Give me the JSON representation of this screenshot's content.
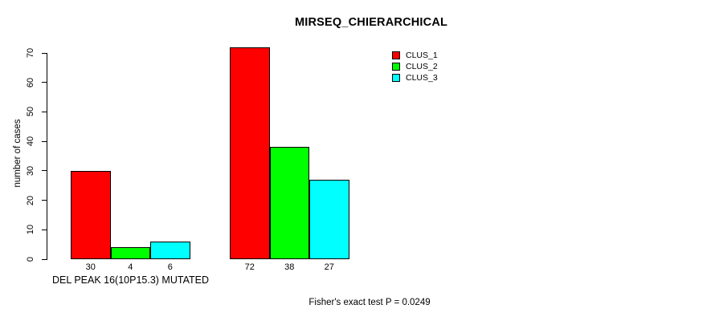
{
  "title": "MIRSEQ_CHIERARCHICAL",
  "y_axis": {
    "label": "number of cases"
  },
  "x_axis": {
    "label": "DEL PEAK 16(10P15.3) MUTATED"
  },
  "footnote": "Fisher's exact test P = 0.0249",
  "chart_data": {
    "type": "bar",
    "title": "MIRSEQ_CHIERARCHICAL",
    "xlabel": "DEL PEAK 16(10P15.3) MUTATED",
    "ylabel": "number of cases",
    "annotation": "Fisher's exact test P = 0.0249",
    "categories": [
      "DEL PEAK 16(10P15.3) MUTATED",
      ""
    ],
    "series": [
      {
        "name": "CLUS_1",
        "color": "#ff0000",
        "values": [
          30,
          72
        ]
      },
      {
        "name": "CLUS_2",
        "color": "#00ff00",
        "values": [
          4,
          38
        ]
      },
      {
        "name": "CLUS_3",
        "color": "#00ffff",
        "values": [
          6,
          27
        ]
      }
    ],
    "bar_value_labels": [
      [
        "30",
        "4",
        "6"
      ],
      [
        "72",
        "38",
        "27"
      ]
    ],
    "yticks": [
      0,
      10,
      20,
      30,
      40,
      50,
      60,
      70
    ],
    "ylim": [
      0,
      70
    ],
    "grid": false,
    "legend_position": "top-right-inside",
    "background": "#ffffff",
    "bar_border_color": "#000000"
  }
}
